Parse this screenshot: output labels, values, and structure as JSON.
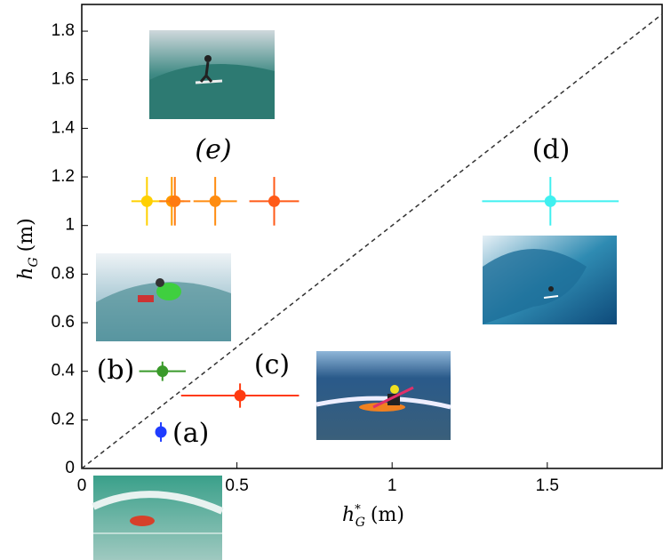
{
  "chart_data": {
    "type": "scatter",
    "x_label": {
      "symbol": "h",
      "sup": "*",
      "sub": "G",
      "unit": "(m)"
    },
    "y_label": {
      "symbol": "h",
      "sub": "G",
      "unit": "(m)"
    },
    "xlim": [
      0,
      1.87
    ],
    "ylim": [
      0,
      1.91
    ],
    "xticks": [
      0,
      0.5,
      1,
      1.5
    ],
    "yticks": [
      0,
      0.2,
      0.4,
      0.6,
      0.8,
      1,
      1.2,
      1.4,
      1.6,
      1.8
    ],
    "diagonal": true,
    "series": [
      {
        "color": "#1f3cff",
        "x": [
          0.255
        ],
        "y": [
          0.15
        ],
        "xerr": [
          0.005
        ],
        "yerr": [
          0.04
        ]
      },
      {
        "color": "#3a9a2a",
        "x": [
          0.26
        ],
        "y": [
          0.4
        ],
        "xerr": [
          0.075
        ],
        "yerr": [
          0.04
        ]
      },
      {
        "color": "#ff3a10",
        "x": [
          0.51
        ],
        "y": [
          0.3
        ],
        "xerr": [
          0.19
        ],
        "yerr": [
          0.05
        ]
      },
      {
        "color": "#40f0f0",
        "x": [
          1.51
        ],
        "y": [
          1.1
        ],
        "xerr": [
          0.22
        ],
        "yerr": [
          0.1
        ]
      },
      {
        "color": "#ffd000",
        "x": [
          0.21
        ],
        "y": [
          1.1
        ],
        "xerr": [
          0.05
        ],
        "yerr": [
          0.1
        ]
      },
      {
        "color": "#ff9a00",
        "x": [
          0.29
        ],
        "y": [
          1.1
        ],
        "xerr": [
          0.04
        ],
        "yerr": [
          0.1
        ]
      },
      {
        "color": "#ff7a10",
        "x": [
          0.3
        ],
        "y": [
          1.1
        ],
        "xerr": [
          0.05
        ],
        "yerr": [
          0.1
        ]
      },
      {
        "color": "#ff8c10",
        "x": [
          0.43
        ],
        "y": [
          1.1
        ],
        "xerr": [
          0.07
        ],
        "yerr": [
          0.1
        ]
      },
      {
        "color": "#ff5a18",
        "x": [
          0.62
        ],
        "y": [
          1.1
        ],
        "xerr": [
          0.08
        ],
        "yerr": [
          0.1
        ]
      }
    ],
    "annotations": [
      "(a)",
      "(b)",
      "(c)",
      "(d)",
      "(e)"
    ]
  }
}
